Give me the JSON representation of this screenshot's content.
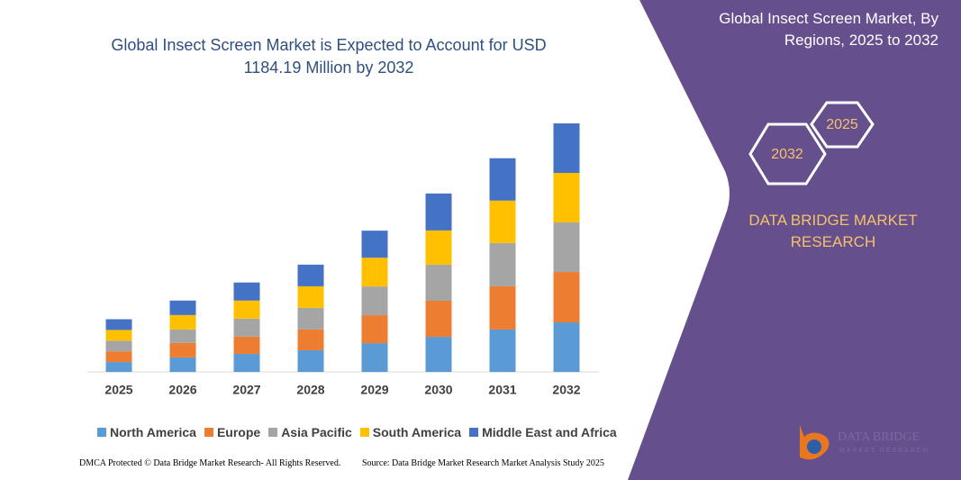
{
  "chart_data": {
    "type": "bar",
    "stacked": true,
    "title": "Global Insect Screen Market is Expected to Account for USD 1184.19 Million by 2032",
    "categories": [
      "2025",
      "2026",
      "2027",
      "2028",
      "2029",
      "2030",
      "2031",
      "2032"
    ],
    "series": [
      {
        "name": "North America",
        "color": "#5b9bd5",
        "values": [
          47,
          69,
          86,
          103,
          137,
          167,
          202,
          236
        ]
      },
      {
        "name": "Europe",
        "color": "#ed7d31",
        "values": [
          51,
          69,
          82,
          99,
          133,
          172,
          206,
          240
        ]
      },
      {
        "name": "Asia Pacific",
        "color": "#a5a5a5",
        "values": [
          51,
          64,
          86,
          103,
          137,
          172,
          206,
          236
        ]
      },
      {
        "name": "South America",
        "color": "#ffc000",
        "values": [
          51,
          69,
          86,
          103,
          137,
          163,
          202,
          236
        ]
      },
      {
        "name": "Middle East and Africa",
        "color": "#4472c4",
        "values": [
          51,
          69,
          86,
          103,
          129,
          176,
          202,
          236
        ]
      }
    ]
  },
  "panel": {
    "title": "Global Insect Screen Market, By Regions, 2025 to 2032",
    "year_large": "2032",
    "year_small": "2025",
    "brand": "DATA BRIDGE MARKET RESEARCH"
  },
  "logo": {
    "name": "DATA BRIDGE",
    "tagline": "MARKET RESEARCH"
  },
  "footer": {
    "copyright": "DMCA Protected © Data Bridge Market Research- All Rights Reserved.",
    "source": "Source: Data Bridge Market Research Market Analysis Study 2025"
  }
}
